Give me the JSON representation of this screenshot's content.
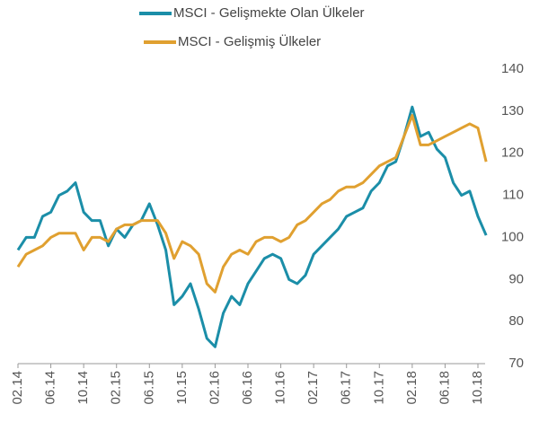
{
  "chart_data": {
    "type": "line",
    "categories": [
      "02.14",
      null,
      null,
      null,
      "06.14",
      null,
      null,
      null,
      "10.14",
      null,
      null,
      null,
      "02.15",
      null,
      null,
      null,
      "06.15",
      null,
      null,
      null,
      "10.15",
      null,
      null,
      null,
      "02.16",
      null,
      null,
      null,
      "06.16",
      null,
      null,
      null,
      "10.16",
      null,
      null,
      null,
      "02.17",
      null,
      null,
      null,
      "06.17",
      null,
      null,
      null,
      "10.17",
      null,
      null,
      null,
      "02.18",
      null,
      null,
      null,
      "06.18",
      null,
      null,
      null,
      "10.18",
      null
    ],
    "series": [
      {
        "name": "MSCI - Gelişmekte Olan Ülkeler",
        "color": "#1b8ea8",
        "values": [
          97,
          100,
          100,
          105,
          106,
          110,
          111,
          113,
          106,
          104,
          104,
          98,
          102,
          100,
          103,
          104,
          108,
          103,
          97,
          84,
          86,
          89,
          83,
          76,
          74,
          82,
          86,
          84,
          89,
          92,
          95,
          96,
          95,
          90,
          89,
          91,
          96,
          98,
          100,
          102,
          105,
          106,
          107,
          111,
          113,
          117,
          118,
          124,
          131,
          124,
          125,
          121,
          119,
          113,
          110,
          111,
          105,
          100.5
        ]
      },
      {
        "name": "MSCI - Gelişmiş Ülkeler",
        "color": "#e0a030",
        "values": [
          93,
          96,
          97,
          98,
          100,
          101,
          101,
          101,
          97,
          100,
          100,
          99,
          102,
          103,
          103,
          104,
          104,
          104,
          101,
          95,
          99,
          98,
          96,
          89,
          87,
          93,
          96,
          97,
          96,
          99,
          100,
          100,
          99,
          100,
          103,
          104,
          106,
          108,
          109,
          111,
          112,
          112,
          113,
          115,
          117,
          118,
          119,
          124,
          129,
          122,
          122,
          123,
          124,
          125,
          126,
          127,
          126,
          118
        ]
      }
    ],
    "ylim": [
      70,
      140
    ],
    "yticks": [
      70,
      80,
      90,
      100,
      110,
      120,
      130,
      140
    ],
    "grid": false
  }
}
